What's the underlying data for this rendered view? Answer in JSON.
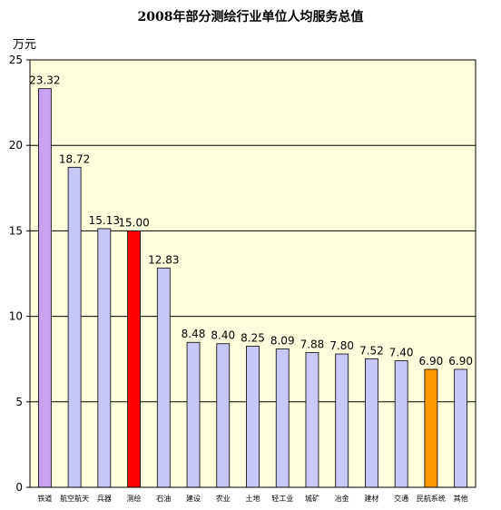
{
  "chart_data": {
    "type": "bar",
    "title": "2008年部分测绘行业单位人均服务总值",
    "ylabel": "万元",
    "xlabel": "",
    "ylim": [
      0,
      25
    ],
    "yticks": [
      0,
      5,
      10,
      15,
      20,
      25
    ],
    "grid": true,
    "categories": [
      "铁道",
      "航空航天",
      "兵器",
      "测绘",
      "石油",
      "建设",
      "农业",
      "土地",
      "轻工业",
      "城矿",
      "冶金",
      "建材",
      "交通",
      "民航系统",
      "其他"
    ],
    "values": [
      23.32,
      18.72,
      15.13,
      15.0,
      12.83,
      8.48,
      8.4,
      8.25,
      8.09,
      7.88,
      7.8,
      7.52,
      7.4,
      6.9,
      6.9
    ],
    "value_labels": [
      "23.32",
      "18.72",
      "15.13",
      "15.00",
      "12.83",
      "8.48",
      "8.40",
      "8.25",
      "8.09",
      "7.88",
      "7.80",
      "7.52",
      "7.40",
      "6.90",
      "6.90"
    ],
    "bar_colors": [
      "#c8a2f0",
      "#c8c8f8",
      "#c8c8f8",
      "#ff0000",
      "#c8c8f8",
      "#c8c8f8",
      "#c8c8f8",
      "#c8c8f8",
      "#c8c8f8",
      "#c8c8f8",
      "#c8c8f8",
      "#c8c8f8",
      "#c8c8f8",
      "#ff9900",
      "#c8c8f8"
    ],
    "plot_background": "#ffffdd"
  }
}
